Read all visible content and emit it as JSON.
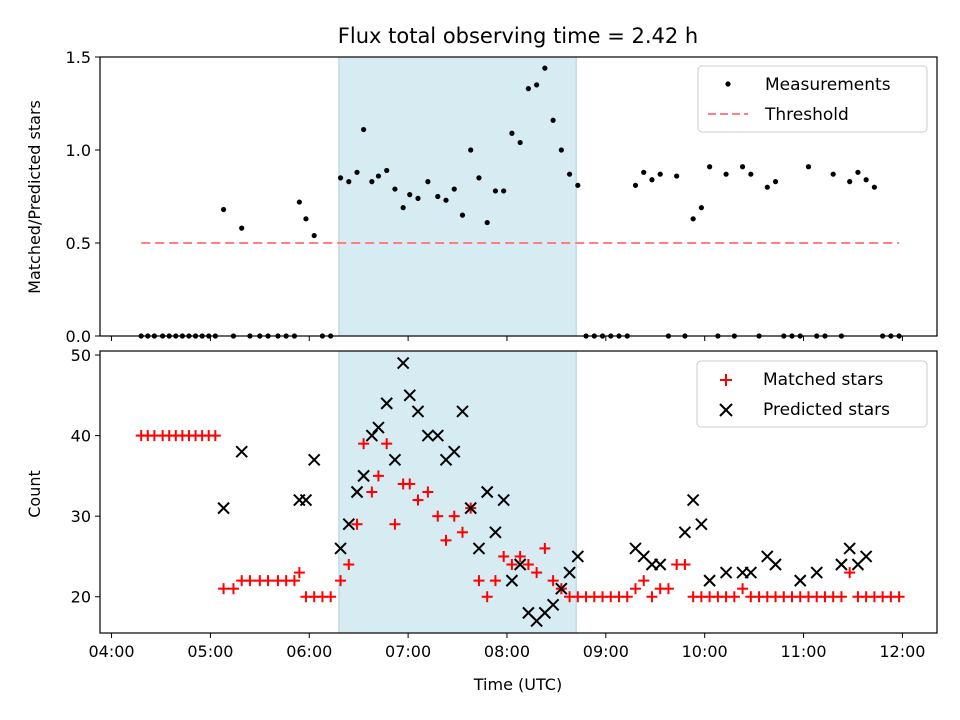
{
  "chart_data": [
    {
      "type": "scatter",
      "title": "Flux total observing time = 2.42 h",
      "xlabel": "",
      "ylabel": "Matched/Predicted stars",
      "ylim": [
        0,
        1.5
      ],
      "yticks": [
        "0.0",
        "0.5",
        "1.0",
        "1.5"
      ],
      "xlim": [
        "04:00",
        "12:00"
      ],
      "shaded_region": [
        "06:18",
        "08:42"
      ],
      "legend_position": "top-right",
      "series": [
        {
          "name": "Measurements",
          "kind": "scatter-dot",
          "color": "#000000",
          "points": [
            [
              "04:18",
              0
            ],
            [
              "04:22",
              0
            ],
            [
              "04:26",
              0
            ],
            [
              "04:31",
              0
            ],
            [
              "04:35",
              0
            ],
            [
              "04:39",
              0
            ],
            [
              "04:43",
              0
            ],
            [
              "04:47",
              0
            ],
            [
              "04:51",
              0
            ],
            [
              "04:55",
              0
            ],
            [
              "04:59",
              0
            ],
            [
              "05:03",
              0
            ],
            [
              "05:08",
              0.68
            ],
            [
              "05:14",
              0
            ],
            [
              "05:19",
              0.58
            ],
            [
              "05:24",
              0
            ],
            [
              "05:30",
              0
            ],
            [
              "05:35",
              0
            ],
            [
              "05:41",
              0
            ],
            [
              "05:46",
              0
            ],
            [
              "05:51",
              0
            ],
            [
              "05:54",
              0.72
            ],
            [
              "05:58",
              0.63
            ],
            [
              "06:03",
              0.54
            ],
            [
              "06:08",
              0
            ],
            [
              "06:13",
              0
            ],
            [
              "06:19",
              0.85
            ],
            [
              "06:24",
              0.83
            ],
            [
              "06:29",
              0.88
            ],
            [
              "06:33",
              1.11
            ],
            [
              "06:38",
              0.83
            ],
            [
              "06:42",
              0.86
            ],
            [
              "06:47",
              0.89
            ],
            [
              "06:52",
              0.79
            ],
            [
              "06:57",
              0.69
            ],
            [
              "07:01",
              0.76
            ],
            [
              "07:06",
              0.74
            ],
            [
              "07:12",
              0.83
            ],
            [
              "07:18",
              0.75
            ],
            [
              "07:23",
              0.73
            ],
            [
              "07:28",
              0.79
            ],
            [
              "07:33",
              0.65
            ],
            [
              "07:38",
              1.0
            ],
            [
              "07:43",
              0.85
            ],
            [
              "07:48",
              0.61
            ],
            [
              "07:53",
              0.78
            ],
            [
              "07:58",
              0.78
            ],
            [
              "08:03",
              1.09
            ],
            [
              "08:08",
              1.04
            ],
            [
              "08:13",
              1.33
            ],
            [
              "08:18",
              1.35
            ],
            [
              "08:23",
              1.44
            ],
            [
              "08:28",
              1.16
            ],
            [
              "08:33",
              1.0
            ],
            [
              "08:38",
              0.87
            ],
            [
              "08:43",
              0.81
            ],
            [
              "08:48",
              0
            ],
            [
              "08:53",
              0
            ],
            [
              "08:58",
              0
            ],
            [
              "09:03",
              0
            ],
            [
              "09:08",
              0
            ],
            [
              "09:13",
              0
            ],
            [
              "09:18",
              0.81
            ],
            [
              "09:23",
              0.88
            ],
            [
              "09:28",
              0.84
            ],
            [
              "09:33",
              0.87
            ],
            [
              "09:38",
              0
            ],
            [
              "09:43",
              0.86
            ],
            [
              "09:48",
              0
            ],
            [
              "09:53",
              0.63
            ],
            [
              "09:58",
              0.69
            ],
            [
              "10:03",
              0.91
            ],
            [
              "10:08",
              0
            ],
            [
              "10:13",
              0.87
            ],
            [
              "10:18",
              0
            ],
            [
              "10:23",
              0.91
            ],
            [
              "10:28",
              0.87
            ],
            [
              "10:33",
              0
            ],
            [
              "10:38",
              0.8
            ],
            [
              "10:43",
              0.83
            ],
            [
              "10:48",
              0
            ],
            [
              "10:53",
              0
            ],
            [
              "10:58",
              0
            ],
            [
              "11:03",
              0.91
            ],
            [
              "11:08",
              0
            ],
            [
              "11:13",
              0
            ],
            [
              "11:18",
              0.87
            ],
            [
              "11:23",
              0
            ],
            [
              "11:28",
              0.83
            ],
            [
              "11:33",
              0.88
            ],
            [
              "11:38",
              0.84
            ],
            [
              "11:43",
              0.8
            ],
            [
              "11:48",
              0
            ],
            [
              "11:53",
              0
            ],
            [
              "11:58",
              0
            ]
          ]
        },
        {
          "name": "Threshold",
          "kind": "dashed-line",
          "color": "#ff7f7f",
          "points": [
            [
              "04:18",
              0.5
            ],
            [
              "11:58",
              0.5
            ]
          ]
        }
      ]
    },
    {
      "type": "scatter",
      "title": "",
      "xlabel": "Time (UTC)",
      "ylabel": "Count",
      "ylim": [
        15.5,
        50.5
      ],
      "yticks": [
        "20",
        "30",
        "40",
        "50"
      ],
      "xlim": [
        "04:00",
        "12:00"
      ],
      "xticks": [
        "04:00",
        "05:00",
        "06:00",
        "07:00",
        "08:00",
        "09:00",
        "10:00",
        "11:00",
        "12:00"
      ],
      "shaded_region": [
        "06:18",
        "08:42"
      ],
      "legend_position": "top-right",
      "series": [
        {
          "name": "Matched stars",
          "kind": "plus",
          "color": "#ff0000",
          "points": [
            [
              "04:18",
              40
            ],
            [
              "04:22",
              40
            ],
            [
              "04:26",
              40
            ],
            [
              "04:31",
              40
            ],
            [
              "04:35",
              40
            ],
            [
              "04:39",
              40
            ],
            [
              "04:43",
              40
            ],
            [
              "04:47",
              40
            ],
            [
              "04:51",
              40
            ],
            [
              "04:55",
              40
            ],
            [
              "04:59",
              40
            ],
            [
              "05:03",
              40
            ],
            [
              "05:08",
              21
            ],
            [
              "05:14",
              21
            ],
            [
              "05:19",
              22
            ],
            [
              "05:24",
              22
            ],
            [
              "05:30",
              22
            ],
            [
              "05:35",
              22
            ],
            [
              "05:41",
              22
            ],
            [
              "05:46",
              22
            ],
            [
              "05:51",
              22
            ],
            [
              "05:54",
              23
            ],
            [
              "05:58",
              20
            ],
            [
              "06:03",
              20
            ],
            [
              "06:08",
              20
            ],
            [
              "06:13",
              20
            ],
            [
              "06:19",
              22
            ],
            [
              "06:24",
              24
            ],
            [
              "06:29",
              29
            ],
            [
              "06:33",
              39
            ],
            [
              "06:38",
              33
            ],
            [
              "06:42",
              35
            ],
            [
              "06:47",
              39
            ],
            [
              "06:52",
              29
            ],
            [
              "06:57",
              34
            ],
            [
              "07:01",
              34
            ],
            [
              "07:06",
              32
            ],
            [
              "07:12",
              33
            ],
            [
              "07:18",
              30
            ],
            [
              "07:23",
              27
            ],
            [
              "07:28",
              30
            ],
            [
              "07:33",
              28
            ],
            [
              "07:38",
              31
            ],
            [
              "07:43",
              22
            ],
            [
              "07:48",
              20
            ],
            [
              "07:53",
              22
            ],
            [
              "07:58",
              25
            ],
            [
              "08:03",
              24
            ],
            [
              "08:08",
              25
            ],
            [
              "08:13",
              24
            ],
            [
              "08:18",
              23
            ],
            [
              "08:23",
              26
            ],
            [
              "08:28",
              22
            ],
            [
              "08:33",
              21
            ],
            [
              "08:38",
              20
            ],
            [
              "08:43",
              20
            ],
            [
              "08:48",
              20
            ],
            [
              "08:53",
              20
            ],
            [
              "08:58",
              20
            ],
            [
              "09:03",
              20
            ],
            [
              "09:08",
              20
            ],
            [
              "09:13",
              20
            ],
            [
              "09:18",
              21
            ],
            [
              "09:23",
              22
            ],
            [
              "09:28",
              20
            ],
            [
              "09:33",
              21
            ],
            [
              "09:38",
              21
            ],
            [
              "09:43",
              24
            ],
            [
              "09:48",
              24
            ],
            [
              "09:53",
              20
            ],
            [
              "09:58",
              20
            ],
            [
              "10:03",
              20
            ],
            [
              "10:08",
              20
            ],
            [
              "10:13",
              20
            ],
            [
              "10:18",
              20
            ],
            [
              "10:23",
              21
            ],
            [
              "10:28",
              20
            ],
            [
              "10:33",
              20
            ],
            [
              "10:38",
              20
            ],
            [
              "10:43",
              20
            ],
            [
              "10:48",
              20
            ],
            [
              "10:53",
              20
            ],
            [
              "10:58",
              20
            ],
            [
              "11:03",
              20
            ],
            [
              "11:08",
              20
            ],
            [
              "11:13",
              20
            ],
            [
              "11:18",
              20
            ],
            [
              "11:23",
              20
            ],
            [
              "11:28",
              23
            ],
            [
              "11:33",
              20
            ],
            [
              "11:38",
              20
            ],
            [
              "11:43",
              20
            ],
            [
              "11:48",
              20
            ],
            [
              "11:53",
              20
            ],
            [
              "11:58",
              20
            ]
          ]
        },
        {
          "name": "Predicted stars",
          "kind": "x",
          "color": "#000000",
          "points": [
            [
              "05:08",
              31
            ],
            [
              "05:19",
              38
            ],
            [
              "05:54",
              32
            ],
            [
              "05:58",
              32
            ],
            [
              "06:03",
              37
            ],
            [
              "06:19",
              26
            ],
            [
              "06:24",
              29
            ],
            [
              "06:29",
              33
            ],
            [
              "06:33",
              35
            ],
            [
              "06:38",
              40
            ],
            [
              "06:42",
              41
            ],
            [
              "06:47",
              44
            ],
            [
              "06:52",
              37
            ],
            [
              "06:57",
              49
            ],
            [
              "07:01",
              45
            ],
            [
              "07:06",
              43
            ],
            [
              "07:12",
              40
            ],
            [
              "07:18",
              40
            ],
            [
              "07:23",
              37
            ],
            [
              "07:28",
              38
            ],
            [
              "07:33",
              43
            ],
            [
              "07:38",
              31
            ],
            [
              "07:43",
              26
            ],
            [
              "07:48",
              33
            ],
            [
              "07:53",
              28
            ],
            [
              "07:58",
              32
            ],
            [
              "08:03",
              22
            ],
            [
              "08:08",
              24
            ],
            [
              "08:13",
              18
            ],
            [
              "08:18",
              17
            ],
            [
              "08:23",
              18
            ],
            [
              "08:28",
              19
            ],
            [
              "08:33",
              21
            ],
            [
              "08:38",
              23
            ],
            [
              "08:43",
              25
            ],
            [
              "09:18",
              26
            ],
            [
              "09:23",
              25
            ],
            [
              "09:28",
              24
            ],
            [
              "09:33",
              24
            ],
            [
              "09:48",
              28
            ],
            [
              "09:53",
              32
            ],
            [
              "09:58",
              29
            ],
            [
              "10:03",
              22
            ],
            [
              "10:13",
              23
            ],
            [
              "10:23",
              23
            ],
            [
              "10:28",
              23
            ],
            [
              "10:38",
              25
            ],
            [
              "10:43",
              24
            ],
            [
              "10:58",
              22
            ],
            [
              "11:08",
              23
            ],
            [
              "11:23",
              24
            ],
            [
              "11:28",
              26
            ],
            [
              "11:33",
              24
            ],
            [
              "11:38",
              25
            ]
          ]
        }
      ]
    }
  ]
}
